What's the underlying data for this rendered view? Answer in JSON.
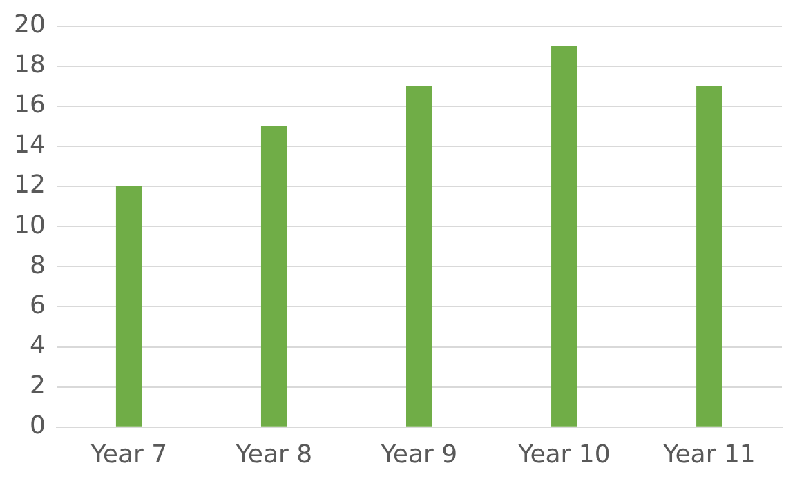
{
  "chart_data": {
    "type": "bar",
    "categories": [
      "Year 7",
      "Year 8",
      "Year 9",
      "Year 10",
      "Year 11"
    ],
    "values": [
      12,
      15,
      17,
      19,
      17
    ],
    "color": "#70ad47",
    "ylim": [
      0,
      20
    ],
    "yticks": [
      0,
      2,
      4,
      6,
      8,
      10,
      12,
      14,
      16,
      18,
      20
    ],
    "grid": "y"
  }
}
